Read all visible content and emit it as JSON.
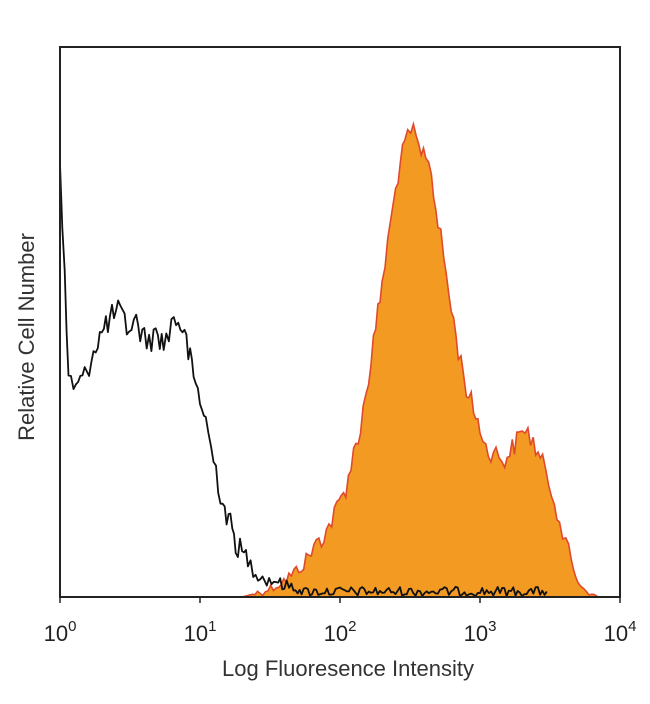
{
  "chart_data": {
    "type": "area",
    "title": "",
    "xlabel": "Log Fluoresence Intensity",
    "ylabel": "Relative Cell Number",
    "xscale": "log",
    "xlim": [
      1,
      10000
    ],
    "ylim": [
      0,
      100
    ],
    "grid": false,
    "legend": "none",
    "x_ticks": [
      {
        "value": 1,
        "base": "10",
        "exp": "0"
      },
      {
        "value": 10,
        "base": "10",
        "exp": "1"
      },
      {
        "value": 100,
        "base": "10",
        "exp": "2"
      },
      {
        "value": 1000,
        "base": "10",
        "exp": "3"
      },
      {
        "value": 10000,
        "base": "10",
        "exp": "4"
      }
    ],
    "series": [
      {
        "style": "line",
        "color": "#111111",
        "points": [
          [
            1.0,
            77
          ],
          [
            1.08,
            58
          ],
          [
            1.15,
            40
          ],
          [
            1.3,
            38
          ],
          [
            1.5,
            40
          ],
          [
            1.8,
            46
          ],
          [
            2.2,
            50
          ],
          [
            2.6,
            52
          ],
          [
            3.0,
            49
          ],
          [
            3.5,
            50
          ],
          [
            4.0,
            47
          ],
          [
            4.5,
            47
          ],
          [
            5.0,
            48
          ],
          [
            5.5,
            46
          ],
          [
            6.0,
            48
          ],
          [
            6.5,
            51
          ],
          [
            7.0,
            50
          ],
          [
            7.5,
            49
          ],
          [
            8.0,
            46
          ],
          [
            8.5,
            43
          ],
          [
            9.0,
            40
          ],
          [
            10,
            36
          ],
          [
            11,
            32
          ],
          [
            12,
            27
          ],
          [
            13,
            23
          ],
          [
            14,
            19
          ],
          [
            15,
            16
          ],
          [
            16,
            14
          ],
          [
            17,
            12
          ],
          [
            18,
            10
          ],
          [
            20,
            8
          ],
          [
            22,
            7
          ],
          [
            24,
            5
          ],
          [
            27,
            4
          ],
          [
            30,
            3
          ],
          [
            35,
            3
          ],
          [
            40,
            2
          ],
          [
            45,
            2
          ],
          [
            55,
            1
          ],
          [
            70,
            1
          ],
          [
            100,
            1
          ],
          [
            200,
            1
          ],
          [
            500,
            1
          ],
          [
            1000,
            1
          ],
          [
            2000,
            1
          ],
          [
            3000,
            1
          ]
        ]
      },
      {
        "style": "filled",
        "color": "#F39A22",
        "edge_color": "#E04A2C",
        "points": [
          [
            1.0,
            0
          ],
          [
            20,
            0
          ],
          [
            28,
            1
          ],
          [
            35,
            2
          ],
          [
            45,
            4
          ],
          [
            55,
            6
          ],
          [
            65,
            9
          ],
          [
            80,
            12
          ],
          [
            95,
            16
          ],
          [
            110,
            20
          ],
          [
            125,
            26
          ],
          [
            140,
            31
          ],
          [
            160,
            40
          ],
          [
            180,
            49
          ],
          [
            200,
            57
          ],
          [
            230,
            68
          ],
          [
            260,
            77
          ],
          [
            290,
            82
          ],
          [
            320,
            85
          ],
          [
            350,
            83
          ],
          [
            380,
            80
          ],
          [
            410,
            81
          ],
          [
            450,
            77
          ],
          [
            500,
            68
          ],
          [
            550,
            62
          ],
          [
            600,
            55
          ],
          [
            700,
            45
          ],
          [
            800,
            38
          ],
          [
            900,
            34
          ],
          [
            1000,
            31
          ],
          [
            1100,
            27
          ],
          [
            1300,
            26
          ],
          [
            1500,
            25
          ],
          [
            1700,
            27
          ],
          [
            1900,
            29
          ],
          [
            2100,
            31
          ],
          [
            2300,
            29
          ],
          [
            2500,
            27
          ],
          [
            2800,
            24
          ],
          [
            3100,
            21
          ],
          [
            3400,
            18
          ],
          [
            3700,
            14
          ],
          [
            4100,
            10
          ],
          [
            4500,
            6
          ],
          [
            5000,
            3
          ],
          [
            5500,
            1.5
          ],
          [
            6000,
            1
          ],
          [
            7000,
            0
          ]
        ]
      }
    ]
  }
}
